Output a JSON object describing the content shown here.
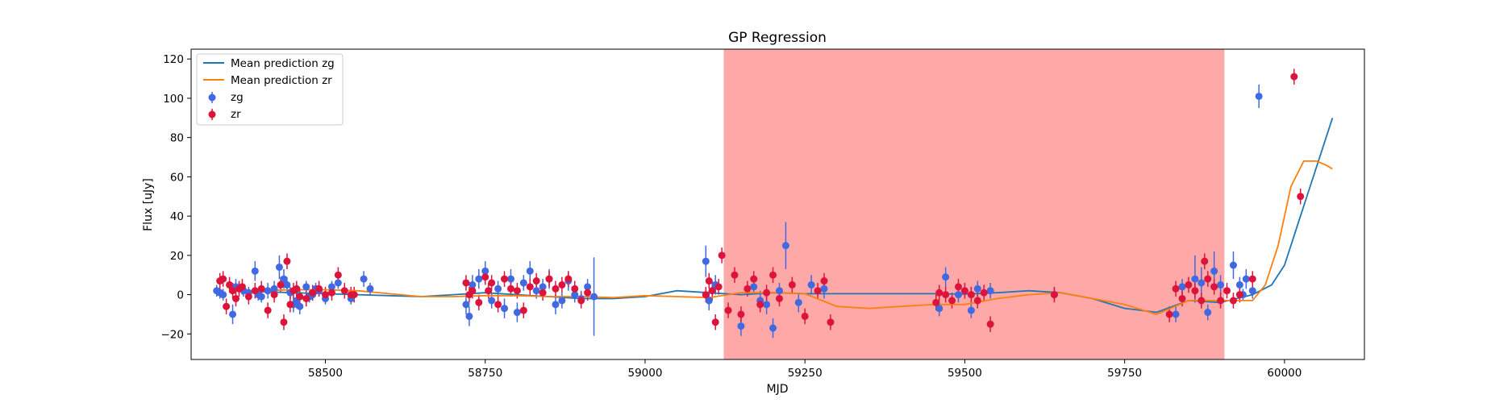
{
  "chart_data": {
    "type": "scatter",
    "title": "GP Regression",
    "xlabel": "MJD",
    "ylabel": "Flux [uJy]",
    "xlim": [
      58290,
      60125
    ],
    "ylim": [
      -33,
      125
    ],
    "xticks": [
      58500,
      58750,
      59000,
      59250,
      59500,
      59750,
      60000
    ],
    "yticks": [
      -20,
      0,
      20,
      40,
      60,
      80,
      100,
      120
    ],
    "grid": false,
    "legend_position": "top-left",
    "shaded_region": {
      "x_start": 59123,
      "x_end": 59906,
      "color": "#ff0000",
      "opacity": 0.34
    },
    "lines": [
      {
        "name": "Mean prediction zg",
        "color": "#1f77b4",
        "x": [
          58350,
          58400,
          58450,
          58500,
          58550,
          58600,
          58650,
          58700,
          58750,
          58800,
          58850,
          58900,
          58950,
          59000,
          59050,
          59100,
          59150,
          59200,
          59250,
          59300,
          59350,
          59400,
          59450,
          59500,
          59550,
          59600,
          59650,
          59700,
          59750,
          59800,
          59850,
          59900,
          59950,
          59980,
          60000,
          60020,
          60040,
          60060,
          60075
        ],
        "y": [
          2,
          1.5,
          1,
          0.5,
          0,
          -0.5,
          -1,
          0,
          1,
          0,
          -1,
          -2,
          -2,
          -1,
          2,
          1,
          0,
          1,
          0.5,
          0.5,
          0.5,
          0.5,
          0.5,
          0.3,
          1,
          2,
          1,
          -2,
          -7,
          -9,
          -3,
          -4,
          0,
          5,
          15,
          35,
          55,
          75,
          90
        ]
      },
      {
        "name": "Mean prediction zr",
        "color": "#ff7f0e",
        "x": [
          58350,
          58400,
          58450,
          58500,
          58550,
          58600,
          58650,
          58700,
          58750,
          58800,
          58850,
          58900,
          58950,
          59000,
          59050,
          59100,
          59150,
          59200,
          59250,
          59300,
          59350,
          59400,
          59450,
          59500,
          59550,
          59600,
          59650,
          59700,
          59750,
          59800,
          59850,
          59900,
          59950,
          59970,
          59990,
          60010,
          60030,
          60050,
          60065,
          60075
        ],
        "y": [
          2,
          2,
          2.5,
          2.5,
          2,
          0.5,
          -1,
          -1,
          -0.5,
          -0.5,
          -1,
          -1,
          -1.5,
          -0.5,
          -1,
          -1.5,
          1,
          1,
          0.5,
          -6,
          -7,
          -6,
          -5,
          -5,
          -2,
          0,
          1,
          -2,
          -5,
          -10,
          -3,
          -3,
          -3,
          5,
          25,
          55,
          68,
          68,
          66,
          64
        ]
      }
    ],
    "series": [
      {
        "name": "zg",
        "color": "#4169e1",
        "x": [
          58330,
          58335,
          58340,
          58355,
          58360,
          58365,
          58372,
          58380,
          58390,
          58395,
          58400,
          58410,
          58420,
          58428,
          58435,
          58440,
          58445,
          58450,
          58455,
          58460,
          58470,
          58475,
          58480,
          58485,
          58490,
          58500,
          58510,
          58520,
          58540,
          58560,
          58570,
          58720,
          58725,
          58730,
          58740,
          58750,
          58755,
          58760,
          58770,
          58780,
          58790,
          58800,
          58810,
          58820,
          58830,
          58840,
          58850,
          58860,
          58870,
          58880,
          58890,
          58900,
          58910,
          58920,
          59095,
          59100,
          59105,
          59110,
          59150,
          59170,
          59180,
          59190,
          59200,
          59210,
          59220,
          59240,
          59260,
          59280,
          59460,
          59470,
          59490,
          59510,
          59520,
          59540,
          59640,
          59830,
          59840,
          59860,
          59870,
          59880,
          59890,
          59900,
          59920,
          59930,
          59935,
          59940,
          59950,
          59960
        ],
        "y": [
          2,
          1,
          0,
          -10,
          4,
          3,
          2,
          1,
          12,
          0,
          -1,
          2,
          3,
          14,
          8,
          5,
          1,
          -5,
          -3,
          -6,
          4,
          -1,
          0,
          3,
          2,
          -2,
          4,
          6,
          -2,
          8,
          3,
          -5,
          -11,
          5,
          8,
          12,
          2,
          -3,
          3,
          -7,
          8,
          -9,
          6,
          12,
          2,
          4,
          8,
          -5,
          -3,
          7,
          0,
          -2,
          4,
          -1,
          17,
          -3,
          2,
          5,
          -16,
          4,
          -3,
          -5,
          -17,
          2,
          25,
          -4,
          5,
          3,
          -7,
          9,
          0,
          -8,
          3,
          2,
          0,
          -10,
          4,
          8,
          6,
          -9,
          12,
          5,
          15,
          5,
          0,
          8,
          2,
          101
        ],
        "err": [
          3,
          3,
          3,
          5,
          4,
          3,
          3,
          3,
          5,
          3,
          3,
          4,
          4,
          6,
          5,
          4,
          3,
          4,
          4,
          4,
          3,
          3,
          3,
          3,
          3,
          3,
          3,
          3,
          3,
          4,
          3,
          5,
          5,
          5,
          5,
          5,
          4,
          4,
          4,
          5,
          5,
          5,
          4,
          5,
          4,
          4,
          5,
          5,
          4,
          5,
          4,
          4,
          4,
          20,
          8,
          5,
          5,
          5,
          5,
          4,
          5,
          5,
          5,
          4,
          12,
          5,
          5,
          5,
          4,
          5,
          4,
          4,
          4,
          4,
          3,
          4,
          4,
          12,
          8,
          4,
          10,
          5,
          7,
          4,
          3,
          5,
          4,
          6
        ]
      },
      {
        "name": "zr",
        "color": "#dc143c",
        "x": [
          58335,
          58340,
          58345,
          58350,
          58355,
          58360,
          58365,
          58370,
          58380,
          58390,
          58400,
          58410,
          58420,
          58430,
          58435,
          58440,
          58445,
          58450,
          58455,
          58460,
          58470,
          58480,
          58490,
          58500,
          58510,
          58520,
          58530,
          58540,
          58545,
          58720,
          58725,
          58730,
          58740,
          58750,
          58755,
          58760,
          58770,
          58780,
          58790,
          58800,
          58810,
          58820,
          58830,
          58840,
          58850,
          58860,
          58870,
          58880,
          58890,
          58900,
          58910,
          59095,
          59100,
          59105,
          59110,
          59115,
          59120,
          59130,
          59140,
          59150,
          59160,
          59170,
          59180,
          59190,
          59200,
          59210,
          59230,
          59250,
          59270,
          59280,
          59290,
          59455,
          59460,
          59470,
          59480,
          59490,
          59500,
          59510,
          59520,
          59530,
          59540,
          59640,
          59820,
          59830,
          59840,
          59850,
          59860,
          59870,
          59875,
          59880,
          59890,
          59900,
          59910,
          59920,
          59930,
          59950,
          60015,
          60025
        ],
        "y": [
          7,
          8,
          -6,
          5,
          2,
          -2,
          3,
          4,
          -1,
          2,
          3,
          -8,
          0,
          5,
          -14,
          17,
          -5,
          2,
          3,
          -1,
          -2,
          1,
          3,
          0,
          1,
          10,
          2,
          0,
          0,
          6,
          0,
          2,
          -4,
          9,
          2,
          6,
          -5,
          8,
          3,
          2,
          -8,
          4,
          7,
          1,
          8,
          3,
          5,
          8,
          3,
          -3,
          1,
          0,
          7,
          2,
          -14,
          4,
          20,
          -8,
          10,
          -10,
          3,
          8,
          -5,
          1,
          10,
          -2,
          5,
          -11,
          2,
          7,
          -14,
          -4,
          1,
          0,
          -3,
          4,
          2,
          0,
          -3,
          1,
          -15,
          0,
          -10,
          3,
          -2,
          5,
          2,
          -3,
          17,
          8,
          4,
          -3,
          2,
          -3,
          0,
          8,
          111,
          50
        ]
      }
    ]
  }
}
